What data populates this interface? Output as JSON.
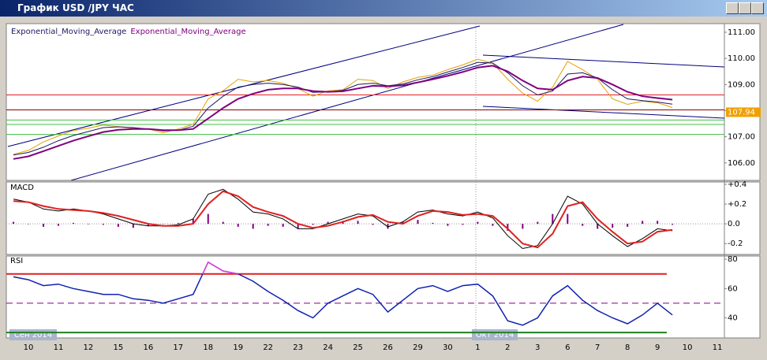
{
  "window": {
    "title": "График USD /JPY ЧАС"
  },
  "chart_data": [
    {
      "type": "line",
      "categories": [
        null,
        "10",
        null,
        "11",
        null,
        "12",
        null,
        "15",
        null,
        "16",
        null,
        "17",
        null,
        "18",
        null,
        "19",
        null,
        "22",
        null,
        "23",
        null,
        "24",
        null,
        "25",
        null,
        "26",
        null,
        "29",
        null,
        "30",
        null,
        "1",
        null,
        "2",
        null,
        "3",
        null,
        "6",
        null,
        "7",
        null,
        "8",
        null,
        "9",
        null,
        "10",
        null,
        "11"
      ],
      "annotations": [
        "Сен 2014",
        "Окт 2014"
      ],
      "series": [
        {
          "color": "#e8a000",
          "values": [
            106.33,
            106.48,
            106.8,
            107.03,
            107.24,
            107.33,
            107.45,
            107.39,
            107.33,
            107.3,
            107.15,
            107.3,
            107.48,
            108.45,
            108.76,
            109.2,
            109.1,
            109.15,
            109.05,
            108.85,
            108.55,
            108.76,
            108.8,
            109.2,
            109.15,
            108.85,
            109.1,
            109.27,
            109.36,
            109.57,
            109.75,
            109.97,
            109.82,
            109.2,
            108.67,
            108.36,
            108.9,
            109.88,
            109.57,
            109.2,
            108.45,
            108.24,
            108.36,
            108.3,
            108.12,
            null,
            null,
            null
          ]
        },
        {
          "name": "Exponential_Moving_Average",
          "color": "#1a1a60",
          "values": [
            106.3,
            106.4,
            106.6,
            106.85,
            107.05,
            107.2,
            107.35,
            107.38,
            107.35,
            107.3,
            107.22,
            107.25,
            107.4,
            108.1,
            108.55,
            108.9,
            109.0,
            109.05,
            109.0,
            108.9,
            108.7,
            108.72,
            108.78,
            109.0,
            109.05,
            108.95,
            109.02,
            109.18,
            109.3,
            109.48,
            109.65,
            109.85,
            109.82,
            109.45,
            108.95,
            108.6,
            108.75,
            109.4,
            109.45,
            109.25,
            108.8,
            108.45,
            108.38,
            108.33,
            108.25,
            null,
            null,
            null
          ]
        },
        {
          "name": "Exponential_Moving_Average",
          "color": "#800080",
          "values": [
            106.15,
            106.25,
            106.45,
            106.65,
            106.85,
            107.02,
            107.18,
            107.27,
            107.3,
            107.3,
            107.25,
            107.25,
            107.3,
            107.7,
            108.1,
            108.45,
            108.65,
            108.8,
            108.85,
            108.85,
            108.75,
            108.72,
            108.74,
            108.85,
            108.95,
            108.93,
            108.97,
            109.08,
            109.2,
            109.33,
            109.48,
            109.65,
            109.72,
            109.5,
            109.15,
            108.85,
            108.8,
            109.15,
            109.3,
            109.25,
            109.0,
            108.72,
            108.55,
            108.48,
            108.42,
            null,
            null,
            null
          ]
        }
      ],
      "hlines": [
        {
          "value": 108.6,
          "color": "#e02020"
        },
        {
          "value": 108.03,
          "color": "#8b0000"
        },
        {
          "value": 107.64,
          "color": "#40c040"
        },
        {
          "value": 107.47,
          "color": "#40c040"
        },
        {
          "value": 107.09,
          "color": "#40c040"
        }
      ],
      "last_price": 107.94,
      "last_price_color": "#f0a000",
      "ylim": [
        105.33,
        111.33
      ],
      "yticks": [
        {
          "value": 106,
          "label": "106.00"
        },
        {
          "value": 107,
          "label": "107.00"
        },
        {
          "value": 108,
          "label": "108.00"
        },
        {
          "value": 109,
          "label": "109.00"
        },
        {
          "value": 110,
          "label": "110.00"
        },
        {
          "value": 111,
          "label": "111.00"
        }
      ]
    },
    {
      "type": "line",
      "title": "MACD",
      "series": [
        {
          "type": "bar",
          "color": "#800080",
          "values": [
            0.02,
            0,
            -0.03,
            -0.02,
            0.01,
            0,
            -0.01,
            -0.03,
            -0.04,
            -0.02,
            0,
            0.01,
            0.05,
            0.1,
            0.02,
            -0.03,
            -0.05,
            -0.02,
            -0.03,
            -0.05,
            -0.01,
            0.02,
            0.03,
            0.03,
            -0.01,
            -0.05,
            0.02,
            0.04,
            0.01,
            -0.02,
            -0.01,
            0.02,
            -0.02,
            -0.07,
            -0.05,
            0.02,
            0.1,
            0.1,
            -0.02,
            -0.05,
            -0.04,
            -0.03,
            0.03,
            0.03,
            -0.01,
            null,
            null,
            null
          ]
        },
        {
          "color": "#000000",
          "values": [
            0.25,
            0.22,
            0.15,
            0.13,
            0.15,
            0.13,
            0.1,
            0.05,
            0.0,
            -0.02,
            -0.02,
            -0.01,
            0.05,
            0.3,
            0.35,
            0.25,
            0.12,
            0.1,
            0.05,
            -0.05,
            -0.05,
            0.0,
            0.05,
            0.1,
            0.08,
            -0.03,
            0.02,
            0.12,
            0.14,
            0.1,
            0.08,
            0.12,
            0.06,
            -0.12,
            -0.25,
            -0.22,
            0.0,
            0.28,
            0.2,
            0.0,
            -0.12,
            -0.23,
            -0.15,
            -0.05,
            -0.07,
            null,
            null,
            null
          ]
        },
        {
          "color": "#e02020",
          "values": [
            0.23,
            0.22,
            0.18,
            0.15,
            0.14,
            0.13,
            0.11,
            0.08,
            0.04,
            0.0,
            -0.02,
            -0.02,
            0.0,
            0.2,
            0.33,
            0.28,
            0.17,
            0.12,
            0.08,
            0.0,
            -0.04,
            -0.02,
            0.02,
            0.07,
            0.09,
            0.02,
            0.0,
            0.08,
            0.13,
            0.12,
            0.09,
            0.1,
            0.08,
            -0.05,
            -0.2,
            -0.24,
            -0.1,
            0.18,
            0.22,
            0.05,
            -0.08,
            -0.2,
            -0.18,
            -0.08,
            -0.06,
            null,
            null,
            null
          ]
        }
      ],
      "ylim": [
        -0.31,
        0.424
      ],
      "yticks": [
        {
          "value": 0.4,
          "label": "+0.4"
        },
        {
          "value": 0.2,
          "label": "+0.2"
        },
        {
          "value": 0,
          "label": "0.0"
        },
        {
          "value": -0.2,
          "label": "-0.2"
        }
      ]
    },
    {
      "type": "line",
      "title": "RSI",
      "series": [
        {
          "color": "#1020b0",
          "values": [
            68,
            66,
            62,
            63,
            60,
            58,
            56,
            56,
            53,
            52,
            50,
            53,
            56,
            78,
            72,
            70,
            65,
            58,
            52,
            45,
            40,
            50,
            55,
            60,
            56,
            44,
            52,
            60,
            62,
            58,
            62,
            63,
            55,
            38,
            35,
            40,
            55,
            62,
            52,
            45,
            40,
            36,
            42,
            50,
            42,
            null,
            null,
            null
          ]
        }
      ],
      "overbought_color": "#e040e0",
      "hlines": [
        {
          "value": 70,
          "color": "#e02020"
        },
        {
          "value": 50,
          "color": "#800080",
          "dashed": true
        },
        {
          "value": 30,
          "color": "#208020"
        }
      ],
      "ylim": [
        26.3,
        82.2
      ],
      "yticks": [
        80,
        60,
        40
      ]
    }
  ]
}
